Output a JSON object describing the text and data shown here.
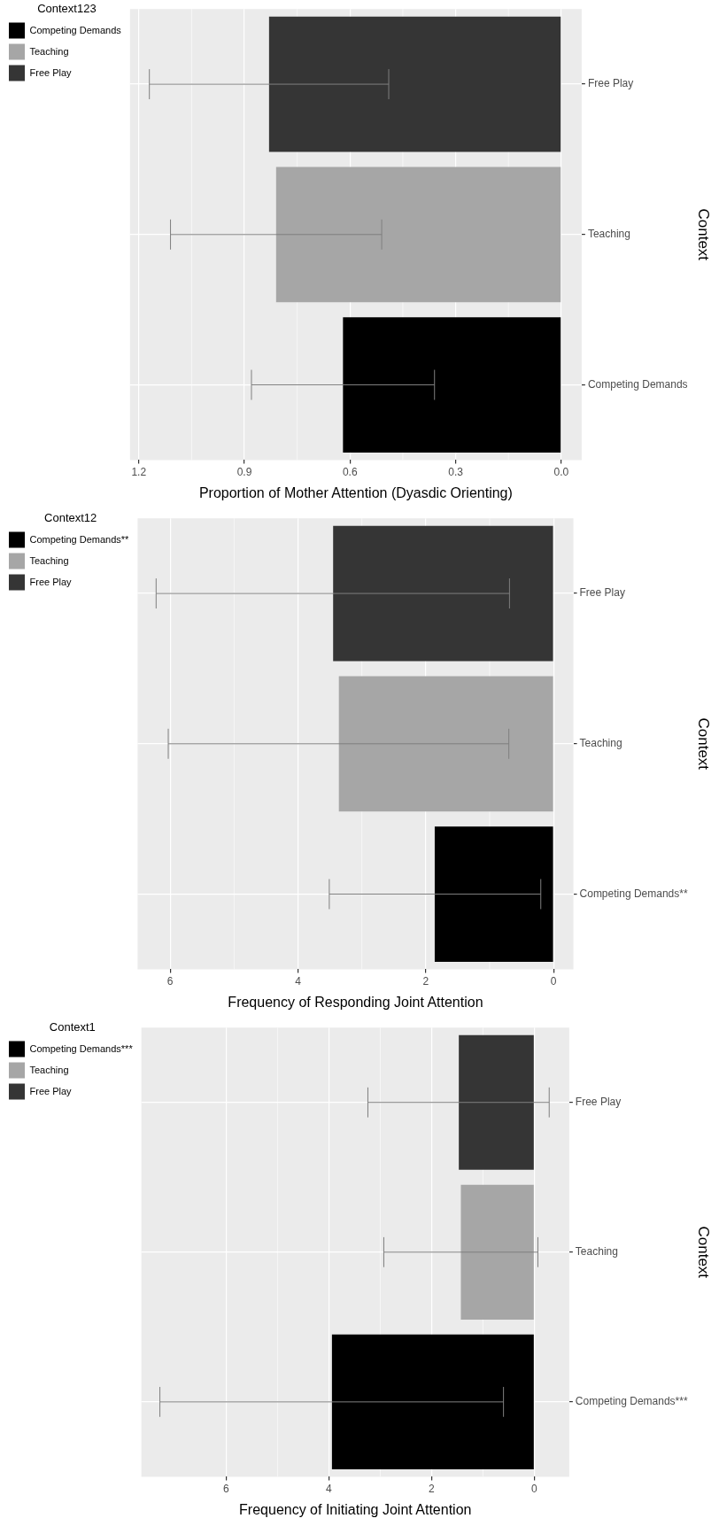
{
  "chart_data": [
    {
      "type": "bar",
      "orientation": "horizontal",
      "xlabel": "Proportion of Mother Attention (Dyasdic Orienting)",
      "ylabel": "Context",
      "legend_title": "Context123",
      "categories": [
        "Free Play",
        "Teaching",
        "Competing Demands"
      ],
      "series": [
        {
          "name": "Competing Demands",
          "color": "#000000",
          "values": [
            null,
            null,
            0.62
          ],
          "errors": [
            null,
            null,
            [
              0.36,
              0.88
            ]
          ]
        },
        {
          "name": "Teaching",
          "color": "#a6a6a6",
          "values": [
            null,
            0.81,
            null
          ],
          "errors": [
            null,
            [
              0.51,
              1.11
            ],
            null
          ]
        },
        {
          "name": "Free Play",
          "color": "#353535",
          "values": [
            0.83,
            null,
            null
          ],
          "errors": [
            [
              0.49,
              1.17
            ],
            null,
            null
          ]
        }
      ],
      "xlim": [
        1.225,
        -0.058
      ],
      "xticks": [
        1.2,
        0.9,
        0.6,
        0.3,
        {
          "value": 0,
          "label": "0.0"
        }
      ],
      "grid": true,
      "legend": "left"
    },
    {
      "type": "bar",
      "orientation": "horizontal",
      "xlabel": "Frequency of Responding Joint Attention",
      "ylabel": "Context",
      "legend_title": "Context12",
      "categories": [
        "Free Play",
        "Teaching",
        "Competing Demands**"
      ],
      "series": [
        {
          "name": "Competing Demands**",
          "color": "#000000",
          "values": [
            null,
            null,
            1.86
          ],
          "errors": [
            null,
            null,
            [
              0.2,
              3.51
            ]
          ]
        },
        {
          "name": "Teaching",
          "color": "#a6a6a6",
          "values": [
            null,
            3.36,
            null
          ],
          "errors": [
            null,
            [
              0.7,
              6.03
            ],
            null
          ]
        },
        {
          "name": "Free Play",
          "color": "#353535",
          "values": [
            3.45,
            null,
            null
          ],
          "errors": [
            [
              0.69,
              6.22
            ],
            null,
            null
          ]
        }
      ],
      "xlim": [
        6.51,
        -0.31
      ],
      "xticks": [
        6,
        4,
        2,
        0
      ],
      "grid": true,
      "legend": "left"
    },
    {
      "type": "bar",
      "orientation": "horizontal",
      "xlabel": "Frequency of Initiating Joint Attention",
      "ylabel": "Context",
      "legend_title": "Context1",
      "categories": [
        "Free Play",
        "Teaching",
        "Competing Demands***"
      ],
      "series": [
        {
          "name": "Competing Demands***",
          "color": "#000000",
          "values": [
            null,
            null,
            3.94
          ],
          "errors": [
            null,
            null,
            [
              0.6,
              7.29
            ]
          ]
        },
        {
          "name": "Teaching",
          "color": "#a6a6a6",
          "values": [
            null,
            1.43,
            null
          ],
          "errors": [
            null,
            [
              -0.07,
              2.93
            ],
            null
          ]
        },
        {
          "name": "Free Play",
          "color": "#353535",
          "values": [
            1.47,
            null,
            null
          ],
          "errors": [
            [
              -0.29,
              3.24
            ],
            null,
            null
          ]
        }
      ],
      "xlim": [
        7.65,
        -0.68
      ],
      "xticks": [
        6,
        4,
        2,
        0
      ],
      "grid": true,
      "legend": "left"
    }
  ]
}
